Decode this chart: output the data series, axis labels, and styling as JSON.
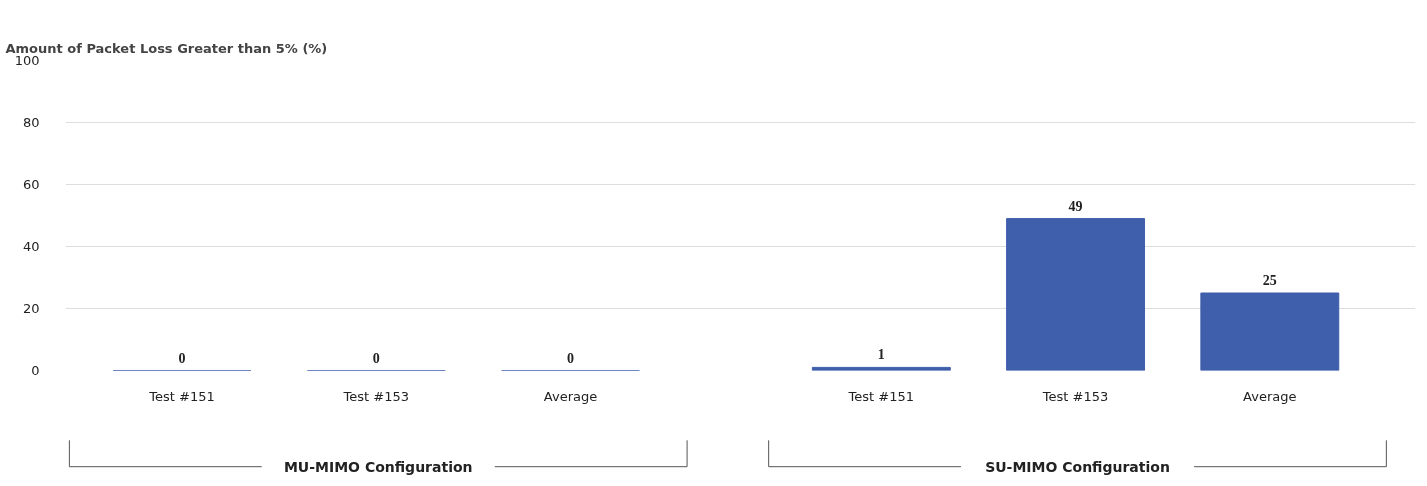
{
  "chart_data": {
    "type": "bar",
    "title": "Amount of Packet Loss Greater than 5% (%)",
    "categories": [
      "Test #151",
      "Test #153",
      "Average",
      "Test #151",
      "Test #153",
      "Average"
    ],
    "values": [
      0,
      0,
      0,
      1,
      49,
      25
    ],
    "color": "#3f5eab",
    "ylim": [
      0,
      100
    ],
    "yticks": [
      0,
      20,
      40,
      60,
      80,
      100
    ],
    "grid": "y",
    "data_labels": true,
    "annotations": [
      "MU-MIMO Configuration",
      "SU-MIMO Configuration"
    ]
  }
}
